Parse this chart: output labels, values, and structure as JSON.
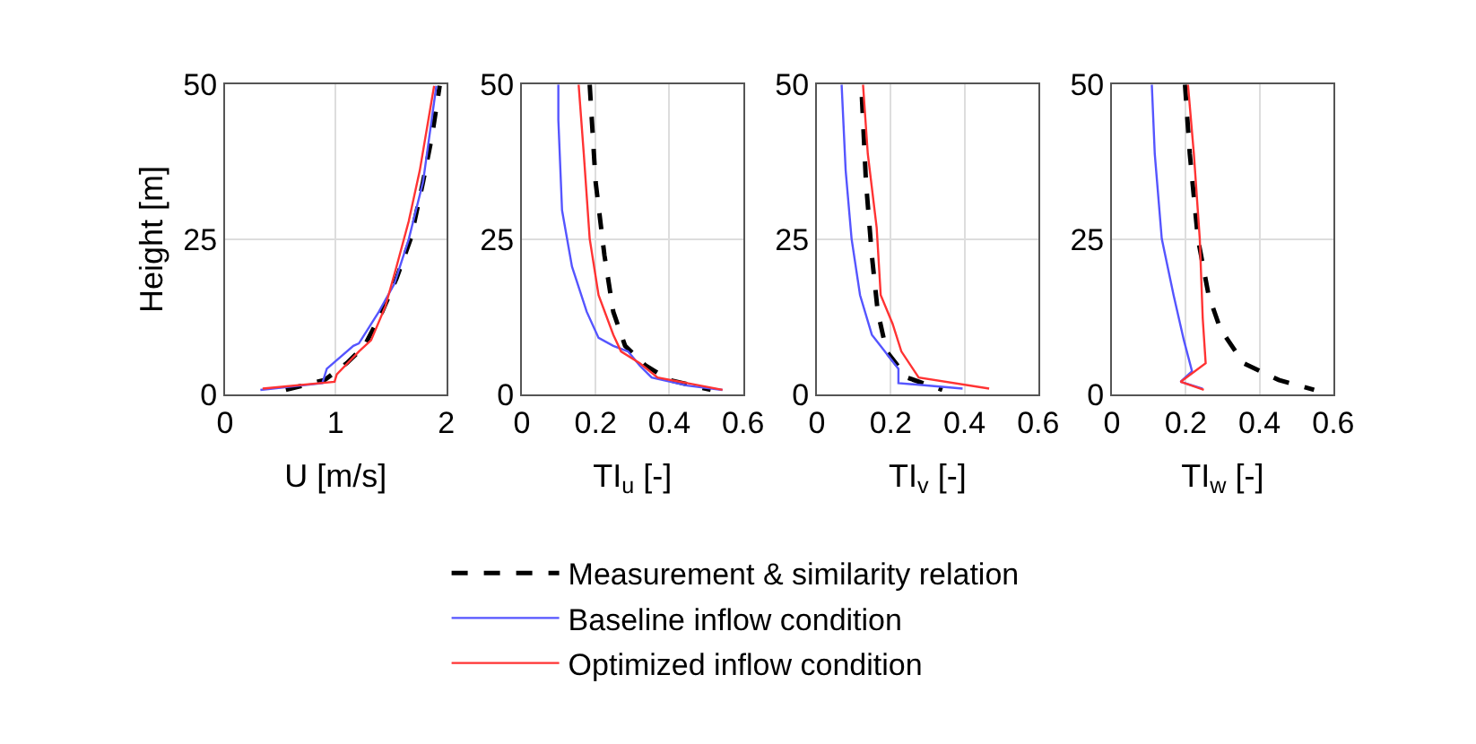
{
  "chart_data": [
    {
      "type": "line",
      "xlabel": "U [m/s]",
      "ylabel": "Height [m]",
      "xlim": [
        0,
        2
      ],
      "xticks": [
        0,
        1,
        2
      ],
      "ylim": [
        0,
        50
      ],
      "yticks": [
        0,
        25,
        50
      ],
      "grid": true,
      "legend": "bottom",
      "marker": "none",
      "series": [
        {
          "name": "Measurement & similarity relation",
          "color": "#000000",
          "line_style": "dashed",
          "x": [
            0.55,
            0.9,
            1.1,
            1.26,
            1.42,
            1.55,
            1.68,
            1.79,
            1.87,
            1.94
          ],
          "values": [
            0.7,
            2.3,
            5,
            7.8,
            13.3,
            18.7,
            25.2,
            34.3,
            41.6,
            49.8
          ]
        },
        {
          "name": "Baseline inflow condition",
          "color": "#5555ff",
          "line_style": "solid",
          "x": [
            0.32,
            0.88,
            0.92,
            1.16,
            1.21,
            1.39,
            1.53,
            1.66,
            1.79,
            1.91
          ],
          "values": [
            0.7,
            1.8,
            4.1,
            7.8,
            8.2,
            13.3,
            17.8,
            25,
            34.3,
            49.8
          ]
        },
        {
          "name": "Optimized inflow condition",
          "color": "#ff3333",
          "line_style": "solid",
          "x": [
            0.34,
            0.99,
            1.01,
            1.21,
            1.32,
            1.45,
            1.55,
            1.66,
            1.76,
            1.89
          ],
          "values": [
            0.9,
            2,
            3.2,
            6.9,
            8.7,
            14.2,
            20.6,
            27.9,
            36.1,
            49.8
          ]
        }
      ]
    },
    {
      "type": "line",
      "xlabel": "TI$_{u}$ [-]",
      "xlim": [
        0,
        0.6
      ],
      "xticks": [
        0,
        0.2,
        0.4,
        0.6
      ],
      "ylim": [
        0,
        50
      ],
      "yticks": [
        0,
        25,
        50
      ],
      "grid": true,
      "marker": "none",
      "series": [
        {
          "color": "#000000",
          "line_style": "dashed",
          "x": [
            0.184,
            0.2,
            0.224,
            0.248,
            0.28,
            0.336,
            0.4,
            0.512
          ],
          "values": [
            50,
            34.3,
            22.4,
            13.3,
            7.8,
            4.6,
            2.3,
            0.7
          ]
        },
        {
          "color": "#5555ff",
          "line_style": "solid",
          "x": [
            0.099,
            0.099,
            0.109,
            0.136,
            0.176,
            0.208,
            0.248,
            0.288,
            0.32,
            0.352,
            0.448,
            0.544
          ],
          "values": [
            50,
            44.3,
            29.7,
            20.6,
            13.3,
            9.1,
            7.8,
            6.9,
            4.6,
            2.7,
            1.4,
            0.7
          ]
        },
        {
          "color": "#ff3333",
          "line_style": "solid",
          "x": [
            0.154,
            0.168,
            0.184,
            0.208,
            0.248,
            0.269,
            0.32,
            0.368,
            0.448,
            0.544
          ],
          "values": [
            50,
            38.8,
            25.1,
            16,
            9.6,
            6.9,
            5,
            2.7,
            1.8,
            0.7
          ]
        }
      ]
    },
    {
      "type": "line",
      "xlabel": "TI$_{v}$ [-]",
      "xlim": [
        0,
        0.6
      ],
      "xticks": [
        0,
        0.2,
        0.4,
        0.6
      ],
      "ylim": [
        0,
        50
      ],
      "yticks": [
        0,
        25,
        50
      ],
      "grid": true,
      "marker": "none",
      "series": [
        {
          "color": "#000000",
          "line_style": "dashed",
          "x": [
            0.122,
            0.133,
            0.149,
            0.165,
            0.189,
            0.244,
            0.34
          ],
          "values": [
            48,
            34.3,
            22.4,
            13.3,
            6.9,
            2.7,
            0.7
          ]
        },
        {
          "color": "#5555ff",
          "line_style": "solid",
          "x": [
            0.067,
            0.078,
            0.094,
            0.117,
            0.149,
            0.221,
            0.221,
            0.395
          ],
          "values": [
            50,
            36.1,
            25.1,
            16,
            9.6,
            4.1,
            1.8,
            0.9
          ]
        },
        {
          "color": "#ff3333",
          "line_style": "solid",
          "x": [
            0.125,
            0.138,
            0.162,
            0.173,
            0.205,
            0.229,
            0.276,
            0.467
          ],
          "values": [
            50,
            38.8,
            26.9,
            16,
            11.4,
            6.9,
            2.7,
            0.9
          ]
        }
      ]
    },
    {
      "type": "line",
      "xlabel": "TI$_{w}$ [-]",
      "xlim": [
        0,
        0.6
      ],
      "xticks": [
        0,
        0.2,
        0.4,
        0.6
      ],
      "ylim": [
        0,
        50
      ],
      "yticks": [
        0,
        25,
        50
      ],
      "grid": true,
      "marker": "none",
      "series": [
        {
          "color": "#000000",
          "line_style": "dashed",
          "x": [
            0.198,
            0.211,
            0.233,
            0.262,
            0.294,
            0.357,
            0.452,
            0.548
          ],
          "values": [
            50,
            38.8,
            25.1,
            16,
            10.5,
            5,
            2.3,
            0.7
          ]
        },
        {
          "color": "#5555ff",
          "line_style": "solid",
          "x": [
            0.108,
            0.116,
            0.135,
            0.167,
            0.195,
            0.217,
            0.186,
            0.246
          ],
          "values": [
            50,
            38.8,
            25.1,
            16,
            8.7,
            3.7,
            2,
            0.9
          ]
        },
        {
          "color": "#ff3333",
          "line_style": "solid",
          "x": [
            0.206,
            0.222,
            0.238,
            0.246,
            0.254,
            0.186,
            0.249
          ],
          "values": [
            50,
            38.8,
            25.1,
            12.3,
            5,
            2,
            0.7
          ]
        }
      ]
    }
  ]
}
